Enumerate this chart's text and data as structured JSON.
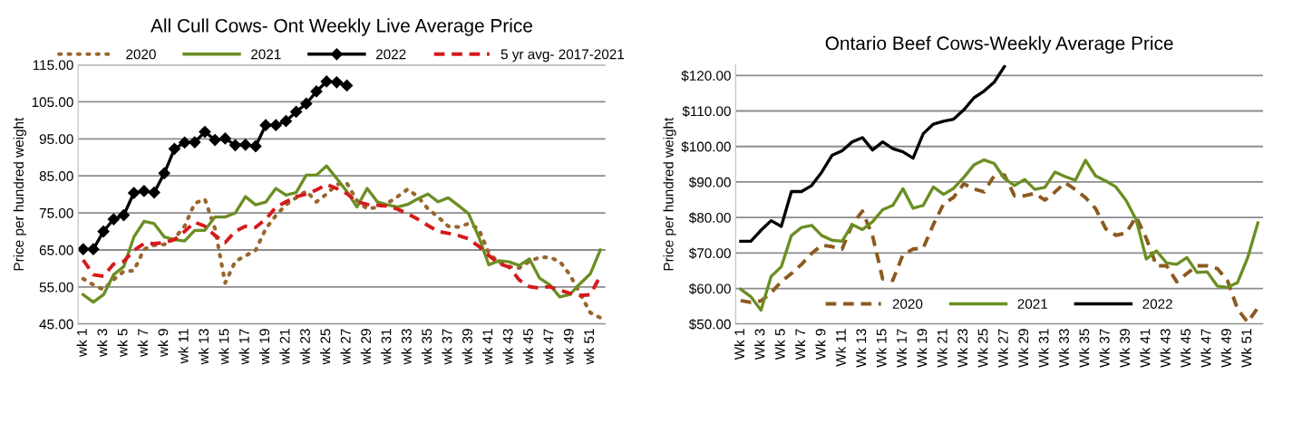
{
  "chart_data": [
    {
      "type": "line",
      "title": "All Cull Cows- Ont Weekly Live Average Price",
      "ylabel": "Price per hundred weight",
      "categories": [
        "wk 1",
        null,
        "wk 3",
        null,
        "wk 5",
        null,
        "wk 7",
        null,
        "wk 9",
        null,
        "wk 11",
        null,
        "wk 13",
        null,
        "wk 15",
        null,
        "wk 17",
        null,
        "wk 19",
        null,
        "wk 21",
        null,
        "wk 23",
        null,
        "wk 25",
        null,
        "wk 27",
        null,
        "wk 29",
        null,
        "wk 31",
        null,
        "wk 33",
        null,
        "wk 35",
        null,
        "wk 37",
        null,
        "wk 39",
        null,
        "wk 41",
        null,
        "wk 43",
        null,
        "wk 45",
        null,
        "wk 47",
        null,
        "wk 49",
        null,
        "wk 51",
        null
      ],
      "ylim": [
        45,
        115
      ],
      "yticks": [
        {
          "value": 45,
          "label": "45.00"
        },
        {
          "value": 55,
          "label": "55.00"
        },
        {
          "value": 65,
          "label": "65.00"
        },
        {
          "value": 75,
          "label": "75.00"
        },
        {
          "value": 85,
          "label": "85.00"
        },
        {
          "value": 95,
          "label": "95.00"
        },
        {
          "value": 105,
          "label": "105.00"
        },
        {
          "value": 115,
          "label": "115.00"
        }
      ],
      "grid": "y",
      "legend": "top",
      "series": [
        {
          "name": "2020",
          "color": "#99662e",
          "line_style": "dotted",
          "values": [
            57.2,
            55.6,
            54.3,
            57,
            59.2,
            59.4,
            65.2,
            66.3,
            66.5,
            68.1,
            71.4,
            77.6,
            78.7,
            70.7,
            56.1,
            61.9,
            63.4,
            64.9,
            70.7,
            74.3,
            77.2,
            79.1,
            80.9,
            78,
            80.1,
            82.7,
            83,
            78.3,
            76.1,
            76.5,
            77.6,
            79.4,
            81.4,
            79.4,
            76.1,
            73.9,
            71.4,
            71.2,
            72.1,
            70.7,
            64.1,
            61.6,
            60.5,
            60.1,
            61.9,
            63,
            63,
            61.9,
            58.3,
            53.2,
            48.1,
            46.7
          ]
        },
        {
          "name": "2021",
          "color": "#6b8e23",
          "line_style": "solid",
          "values": [
            52.9,
            50.9,
            52.9,
            58.3,
            60.5,
            68.5,
            72.7,
            72.1,
            68.5,
            67.8,
            67.4,
            70.3,
            70.3,
            73.9,
            73.9,
            75,
            79.4,
            77.2,
            77.9,
            81.6,
            79.8,
            80.5,
            85.2,
            85.2,
            87.7,
            84.3,
            80.8,
            76.6,
            81.6,
            78,
            77.2,
            76.6,
            77.3,
            78.8,
            80.1,
            78,
            79.1,
            77,
            74.8,
            68.6,
            61,
            62.1,
            61.8,
            60.8,
            62.6,
            57.4,
            55.6,
            52.3,
            53,
            55.9,
            58.5,
            65
          ]
        },
        {
          "name": "2022",
          "color": "#000000",
          "line_style": "solid",
          "marker": "diamond",
          "values": [
            65.2,
            65.2,
            70,
            73.3,
            74.4,
            80.4,
            80.9,
            80.5,
            85.7,
            92.3,
            94,
            94.1,
            96.9,
            94.7,
            95.1,
            93.3,
            93.4,
            93,
            98.7,
            98.7,
            99.8,
            102.3,
            104.5,
            107.8,
            110.5,
            110.3,
            109.4,
            null,
            null,
            null,
            null,
            null,
            null,
            null,
            null,
            null,
            null,
            null,
            null,
            null,
            null,
            null,
            null,
            null,
            null,
            null,
            null,
            null,
            null,
            null,
            null,
            null
          ]
        },
        {
          "name": "5 yr avg- 2017-2021",
          "color": "#d7191c",
          "line_style": "dashed",
          "values": [
            62.3,
            58.3,
            57.9,
            61.2,
            61.9,
            64.9,
            66.7,
            66.7,
            67,
            67.8,
            70,
            72.5,
            71.4,
            68.9,
            67,
            70,
            71.4,
            71.1,
            73.3,
            76.5,
            78,
            79.4,
            80.1,
            81.2,
            82.7,
            81.6,
            80.2,
            78,
            77.3,
            77.1,
            76.8,
            76,
            74.8,
            73.3,
            71.6,
            70,
            69.5,
            68.9,
            68,
            66,
            63.5,
            61.3,
            60.4,
            56.9,
            55.1,
            54.7,
            55.1,
            54.1,
            53.3,
            52.7,
            52.9,
            58
          ]
        }
      ]
    },
    {
      "type": "line",
      "title": "Ontario Beef Cows-Weekly Average Price",
      "ylabel": "Price per hundred weight",
      "categories": [
        "Wk 1",
        null,
        "Wk 3",
        null,
        "Wk 5",
        null,
        "Wk 7",
        null,
        "Wk 9",
        null,
        "Wk 11",
        null,
        "Wk 13",
        null,
        "Wk 15",
        null,
        "Wk 17",
        null,
        "Wk 19",
        null,
        "Wk 21",
        null,
        "Wk 23",
        null,
        "Wk 25",
        null,
        "Wk 27",
        null,
        "Wk 29",
        null,
        "Wk 31",
        null,
        "Wk 33",
        null,
        "Wk 35",
        null,
        "Wk 37",
        null,
        "Wk 39",
        null,
        "Wk 41",
        null,
        "Wk 43",
        null,
        "Wk 45",
        null,
        "Wk 47",
        null,
        "Wk 49",
        null,
        "Wk 51",
        null
      ],
      "ylim": [
        50,
        123
      ],
      "yticks": [
        {
          "value": 50,
          "label": "$50.00"
        },
        {
          "value": 60,
          "label": "$60.00"
        },
        {
          "value": 70,
          "label": "$70.00"
        },
        {
          "value": 80,
          "label": "$80.00"
        },
        {
          "value": 90,
          "label": "$90.00"
        },
        {
          "value": 100,
          "label": "$100.00"
        },
        {
          "value": 110,
          "label": "$110.00"
        },
        {
          "value": 120,
          "label": "$120.00"
        }
      ],
      "grid": "y",
      "legend": "bottom",
      "series": [
        {
          "name": "2020",
          "color": "#8c5a1e",
          "line_style": "dashed",
          "values": [
            56.6,
            56.1,
            56.5,
            58.8,
            61.9,
            64.2,
            66.8,
            69.9,
            72.2,
            71.8,
            71.1,
            78,
            81.8,
            74.9,
            62.7,
            62.3,
            69.5,
            71.1,
            71.4,
            78,
            83.8,
            85.7,
            89.5,
            88,
            87.2,
            91.8,
            92,
            86.1,
            86.1,
            86.8,
            84.9,
            87.2,
            89.8,
            87.9,
            85.6,
            82.5,
            76.8,
            75,
            75.6,
            80.2,
            74.1,
            66.4,
            66.4,
            61.9,
            64.2,
            66.4,
            66.4,
            65.6,
            62.2,
            54.2,
            50.5,
            54.6
          ]
        },
        {
          "name": "2021",
          "color": "#6b8e23",
          "line_style": "solid",
          "values": [
            59.8,
            57.7,
            53.9,
            63.4,
            66.1,
            74.9,
            77.2,
            77.8,
            74.9,
            73.6,
            73.3,
            78,
            76.6,
            78.8,
            82.2,
            83.4,
            88.1,
            82.6,
            83.4,
            88.6,
            86.5,
            88.2,
            91.3,
            94.8,
            96.2,
            95.2,
            91,
            89,
            90.7,
            87.9,
            88.5,
            92.8,
            91.5,
            90.5,
            96.1,
            91.7,
            90.3,
            88.6,
            84.8,
            79.4,
            68.3,
            70.6,
            67.2,
            66.8,
            68.7,
            64.5,
            64.7,
            60.7,
            60.3,
            61.7,
            68.7,
            78.5
          ]
        },
        {
          "name": "2022",
          "color": "#000000",
          "line_style": "solid",
          "values": [
            73.3,
            73.3,
            76.4,
            79.1,
            77.5,
            87.3,
            87.3,
            89,
            92.8,
            97.5,
            98.8,
            101.3,
            102.5,
            99,
            101.3,
            99.4,
            98.5,
            96.7,
            103.6,
            106.3,
            107.1,
            107.7,
            110.3,
            113.7,
            115.6,
            118.1,
            122.5,
            null,
            null,
            null,
            null,
            null,
            null,
            null,
            null,
            null,
            null,
            null,
            null,
            null,
            null,
            null,
            null,
            null,
            null,
            null,
            null,
            null,
            null,
            null,
            null,
            null
          ]
        }
      ]
    }
  ]
}
